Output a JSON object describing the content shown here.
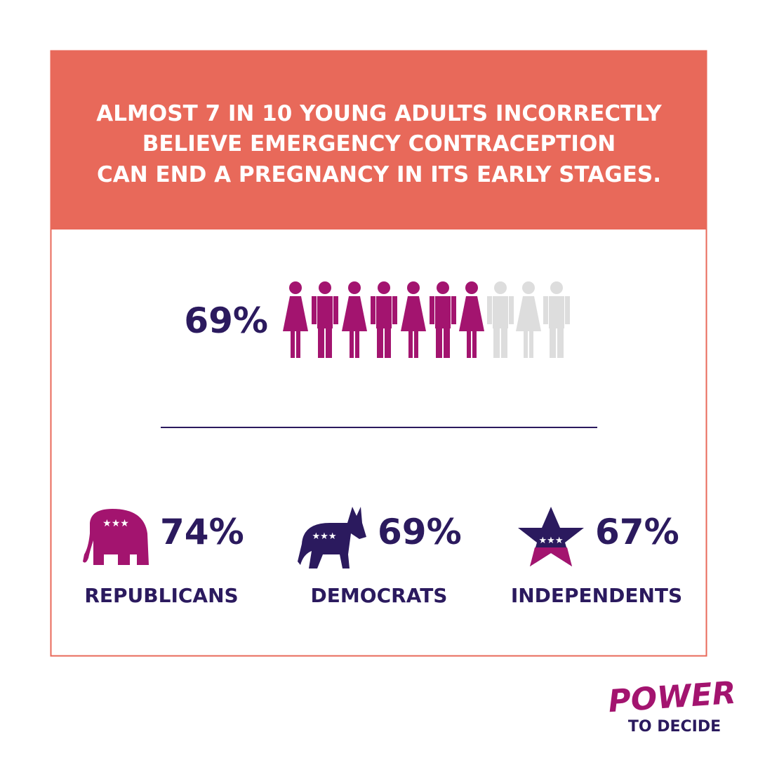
{
  "header": {
    "title_lines": [
      "ALMOST 7 IN 10 YOUNG ADULTS INCORRECTLY",
      "BELIEVE EMERGENCY CONTRACEPTION",
      "CAN END A PREGNANCY IN ITS EARLY STAGES."
    ]
  },
  "main_stat": {
    "value": "69%"
  },
  "parties": [
    {
      "value": "74%",
      "label": "REPUBLICANS"
    },
    {
      "value": "69%",
      "label": "DEMOCRATS"
    },
    {
      "value": "67%",
      "label": "INDEPENDENTS"
    }
  ],
  "logo": {
    "line1": "POWER",
    "line2": "TO DECIDE"
  }
}
